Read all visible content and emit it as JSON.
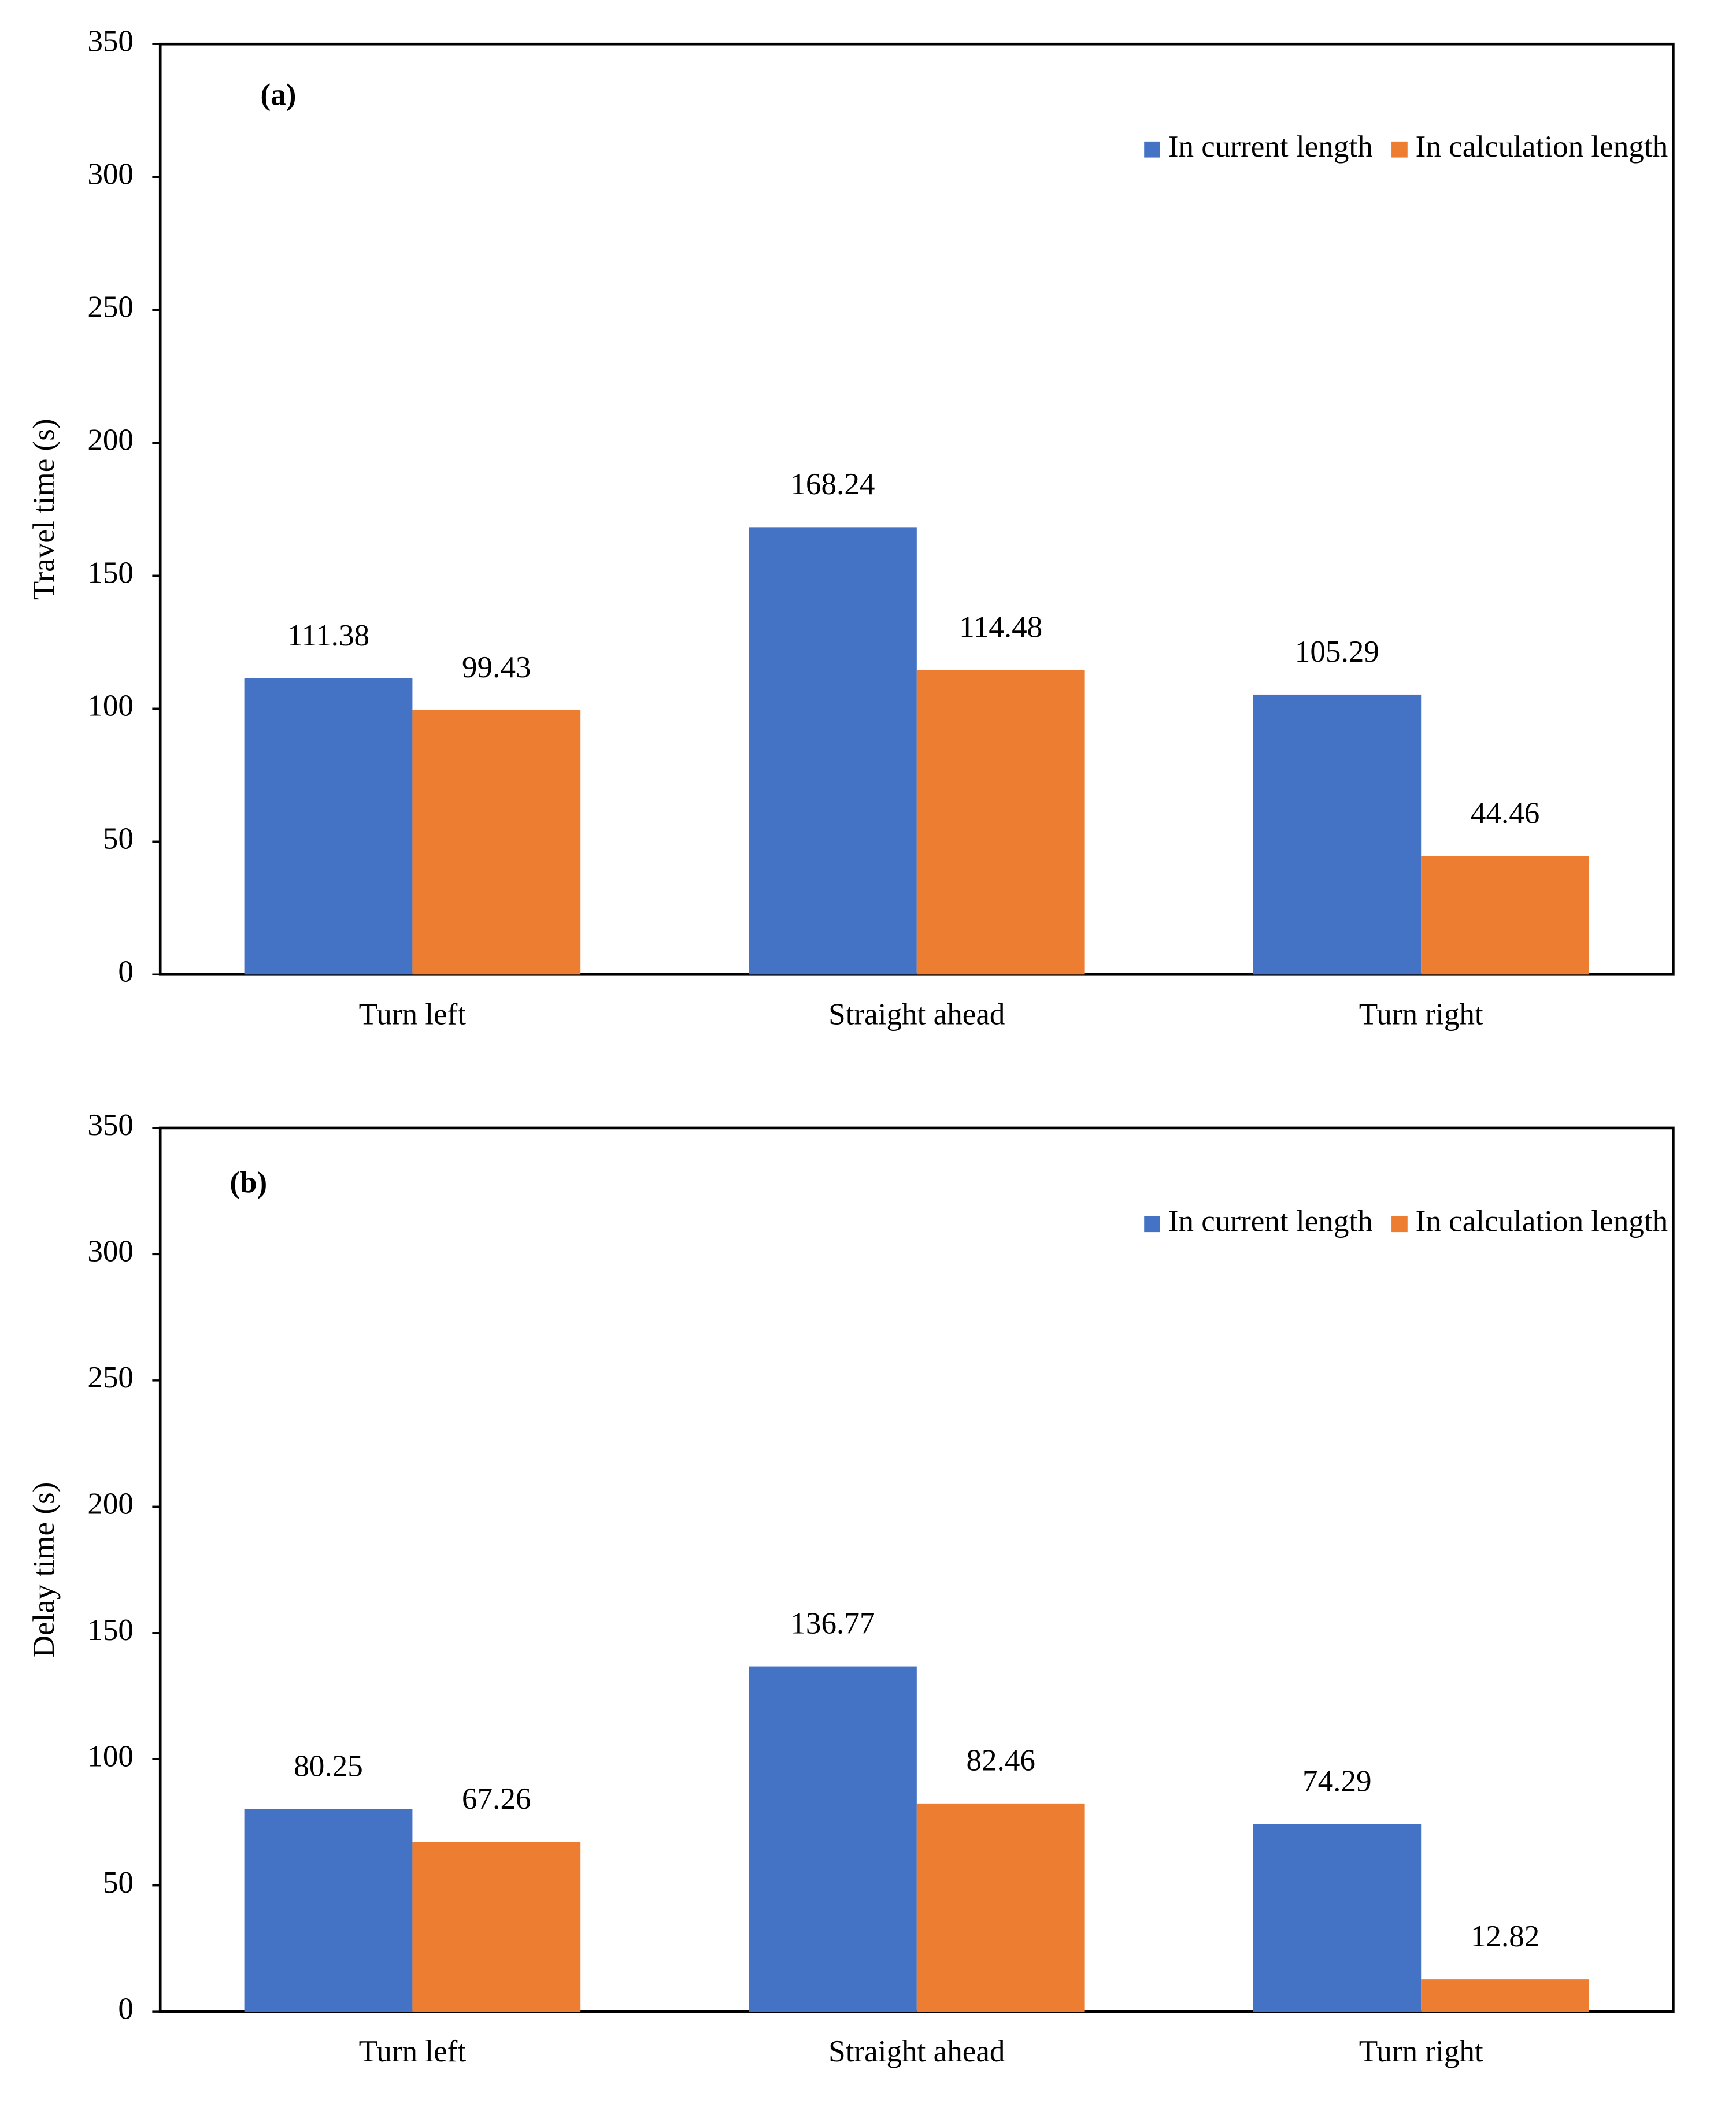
{
  "chart_data": [
    {
      "type": "bar",
      "panel_label": "(a)",
      "y_label": "Travel time (s)",
      "categories": [
        "Turn left",
        "Straight ahead",
        "Turn right"
      ],
      "series": [
        {
          "name": "In current length",
          "color": "#4472c4",
          "values": [
            111.38,
            168.24,
            105.29
          ]
        },
        {
          "name": "In calculation length",
          "color": "#ed7d31",
          "values": [
            99.43,
            114.48,
            44.46
          ]
        }
      ],
      "ylim": [
        0,
        350
      ],
      "yticks": [
        0,
        50,
        100,
        150,
        200,
        250,
        300,
        350
      ],
      "legend": "top-right"
    },
    {
      "type": "bar",
      "panel_label": "(b)",
      "y_label": "Delay time (s)",
      "categories": [
        "Turn left",
        "Straight ahead",
        "Turn right"
      ],
      "series": [
        {
          "name": "In current length",
          "color": "#4472c4",
          "values": [
            80.25,
            136.77,
            74.29
          ]
        },
        {
          "name": "In calculation length",
          "color": "#ed7d31",
          "values": [
            67.26,
            82.46,
            12.82
          ]
        }
      ],
      "ylim": [
        0,
        350
      ],
      "yticks": [
        0,
        50,
        100,
        150,
        200,
        250,
        300,
        350
      ],
      "legend": "top-right"
    }
  ]
}
